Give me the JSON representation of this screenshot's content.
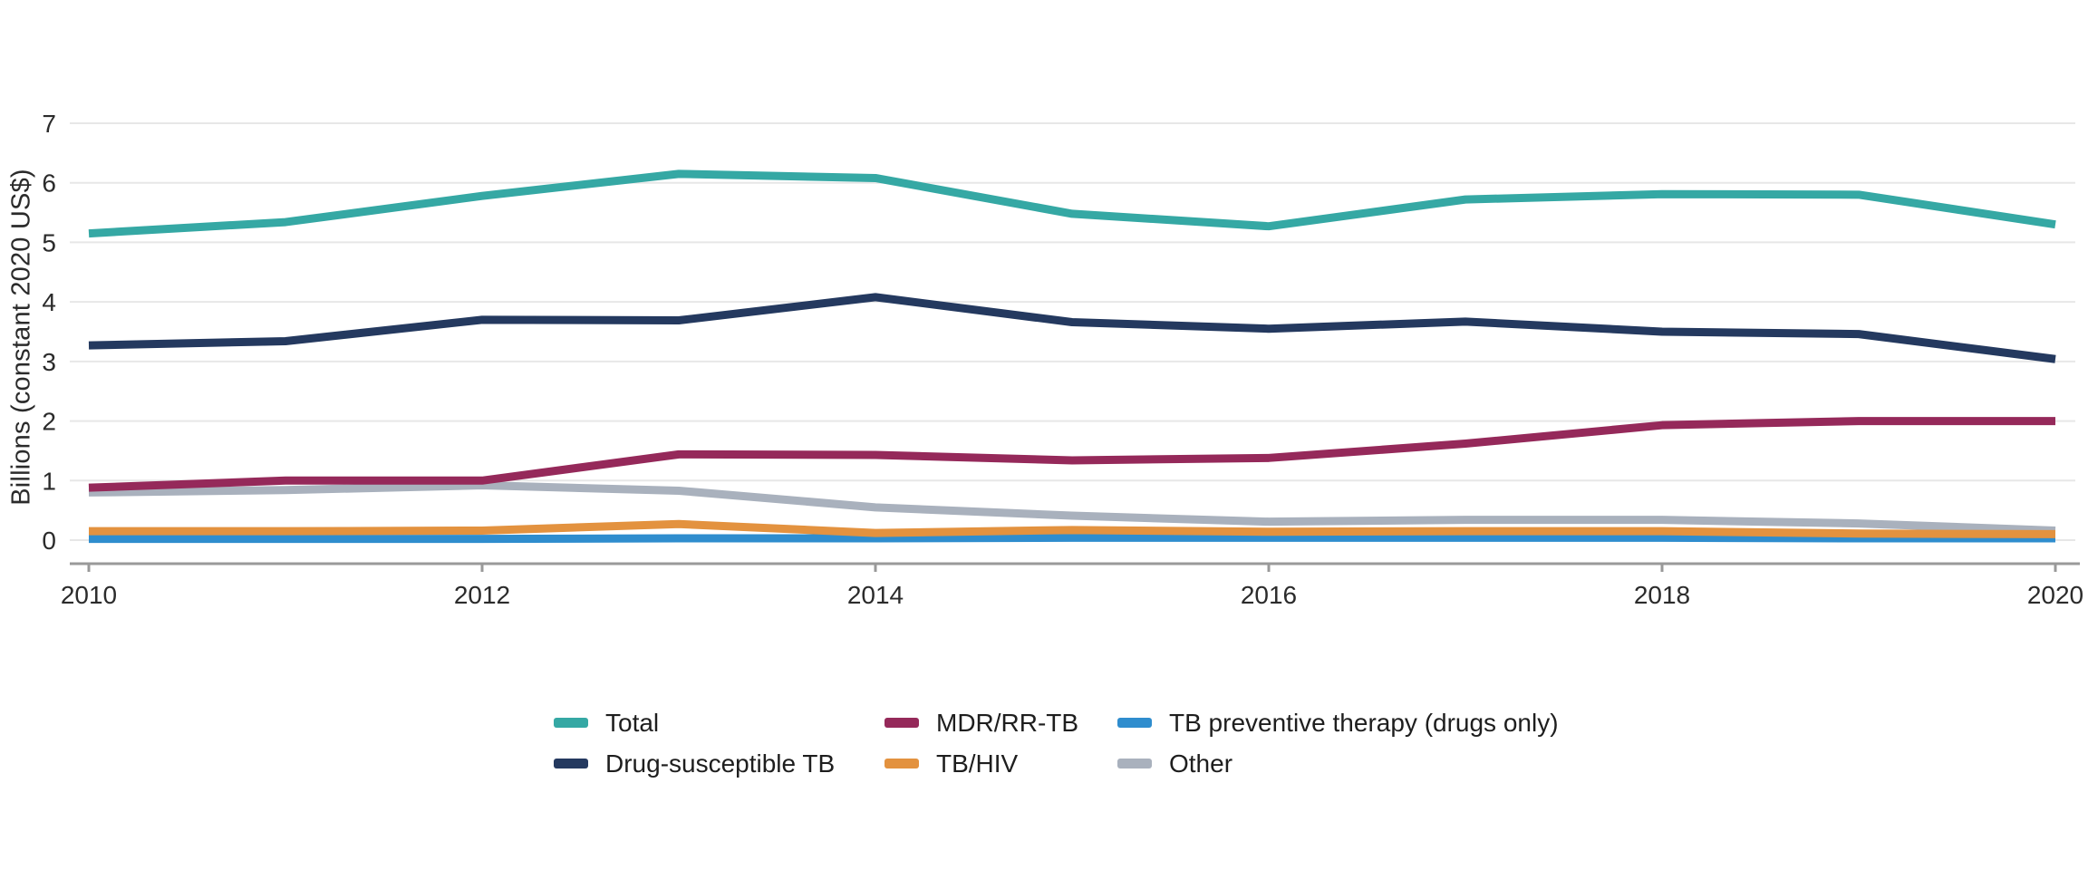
{
  "chart_data": {
    "type": "line",
    "title": "",
    "xlabel": "",
    "ylabel": "Billions (constant 2020 US$)",
    "x": [
      2010,
      2011,
      2012,
      2013,
      2014,
      2015,
      2016,
      2017,
      2018,
      2019,
      2020
    ],
    "xticks": [
      2010,
      2012,
      2014,
      2016,
      2018,
      2020
    ],
    "yticks": [
      0,
      1,
      2,
      3,
      4,
      5,
      6,
      7
    ],
    "ylim": [
      0,
      7
    ],
    "grid": "horizontal",
    "legend_position": "bottom",
    "series": [
      {
        "name": "Total",
        "color": "#35a8a4",
        "values": [
          5.15,
          5.34,
          5.78,
          6.15,
          6.08,
          5.48,
          5.27,
          5.72,
          5.81,
          5.8,
          5.3
        ]
      },
      {
        "name": "Drug-susceptible TB",
        "color": "#24395f",
        "values": [
          3.27,
          3.34,
          3.7,
          3.69,
          4.08,
          3.66,
          3.55,
          3.67,
          3.5,
          3.46,
          3.04
        ]
      },
      {
        "name": "MDR/RR-TB",
        "color": "#95295a",
        "values": [
          0.88,
          1.0,
          1.0,
          1.44,
          1.43,
          1.34,
          1.38,
          1.62,
          1.93,
          2.0,
          2.0
        ]
      },
      {
        "name": "TB/HIV",
        "color": "#e3923f",
        "values": [
          0.15,
          0.15,
          0.16,
          0.27,
          0.12,
          0.17,
          0.14,
          0.15,
          0.15,
          0.11,
          0.1
        ]
      },
      {
        "name": "TB preventive therapy (drugs only)",
        "color": "#2f8dce",
        "values": [
          0.02,
          0.02,
          0.02,
          0.03,
          0.03,
          0.04,
          0.04,
          0.04,
          0.04,
          0.03,
          0.03
        ]
      },
      {
        "name": "Other",
        "color": "#a9b1bd",
        "values": [
          0.8,
          0.84,
          0.92,
          0.83,
          0.55,
          0.41,
          0.31,
          0.34,
          0.34,
          0.28,
          0.16
        ]
      }
    ],
    "axis_color": "#999999",
    "gridline_color": "#e7e7e7",
    "tick_label_color": "#2b2b2b"
  },
  "legend": {
    "display_order": [
      0,
      2,
      4,
      1,
      3,
      5
    ]
  }
}
